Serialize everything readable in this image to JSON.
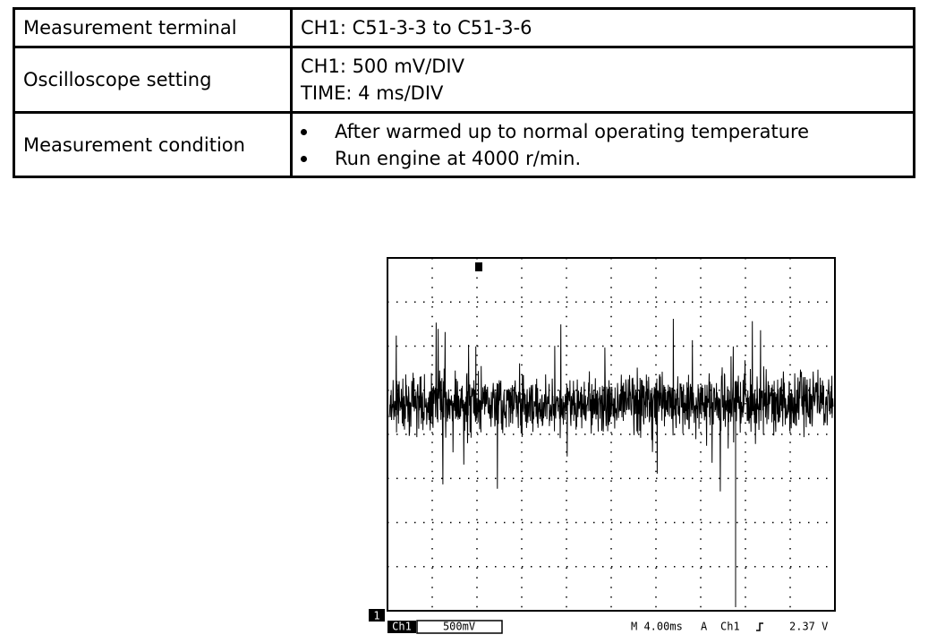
{
  "table": {
    "rows": [
      {
        "label": "Measurement terminal",
        "lines": [
          "CH1: C51-3-3 to C51-3-6"
        ]
      },
      {
        "label": "Oscilloscope setting",
        "lines": [
          "CH1: 500 mV/DIV",
          "TIME: 4 ms/DIV"
        ]
      },
      {
        "label": "Measurement condition",
        "bullets": [
          "After warmed up to normal operating temperature",
          "Run engine at 4000 r/min."
        ]
      }
    ]
  },
  "scope": {
    "channel_marker": "1",
    "status": {
      "channel": "Ch1",
      "volts": "500mV",
      "time": "M 4.00ms",
      "trigger_mode": "A",
      "trigger_source": "Ch1",
      "trigger_level": "2.37 V"
    }
  }
}
